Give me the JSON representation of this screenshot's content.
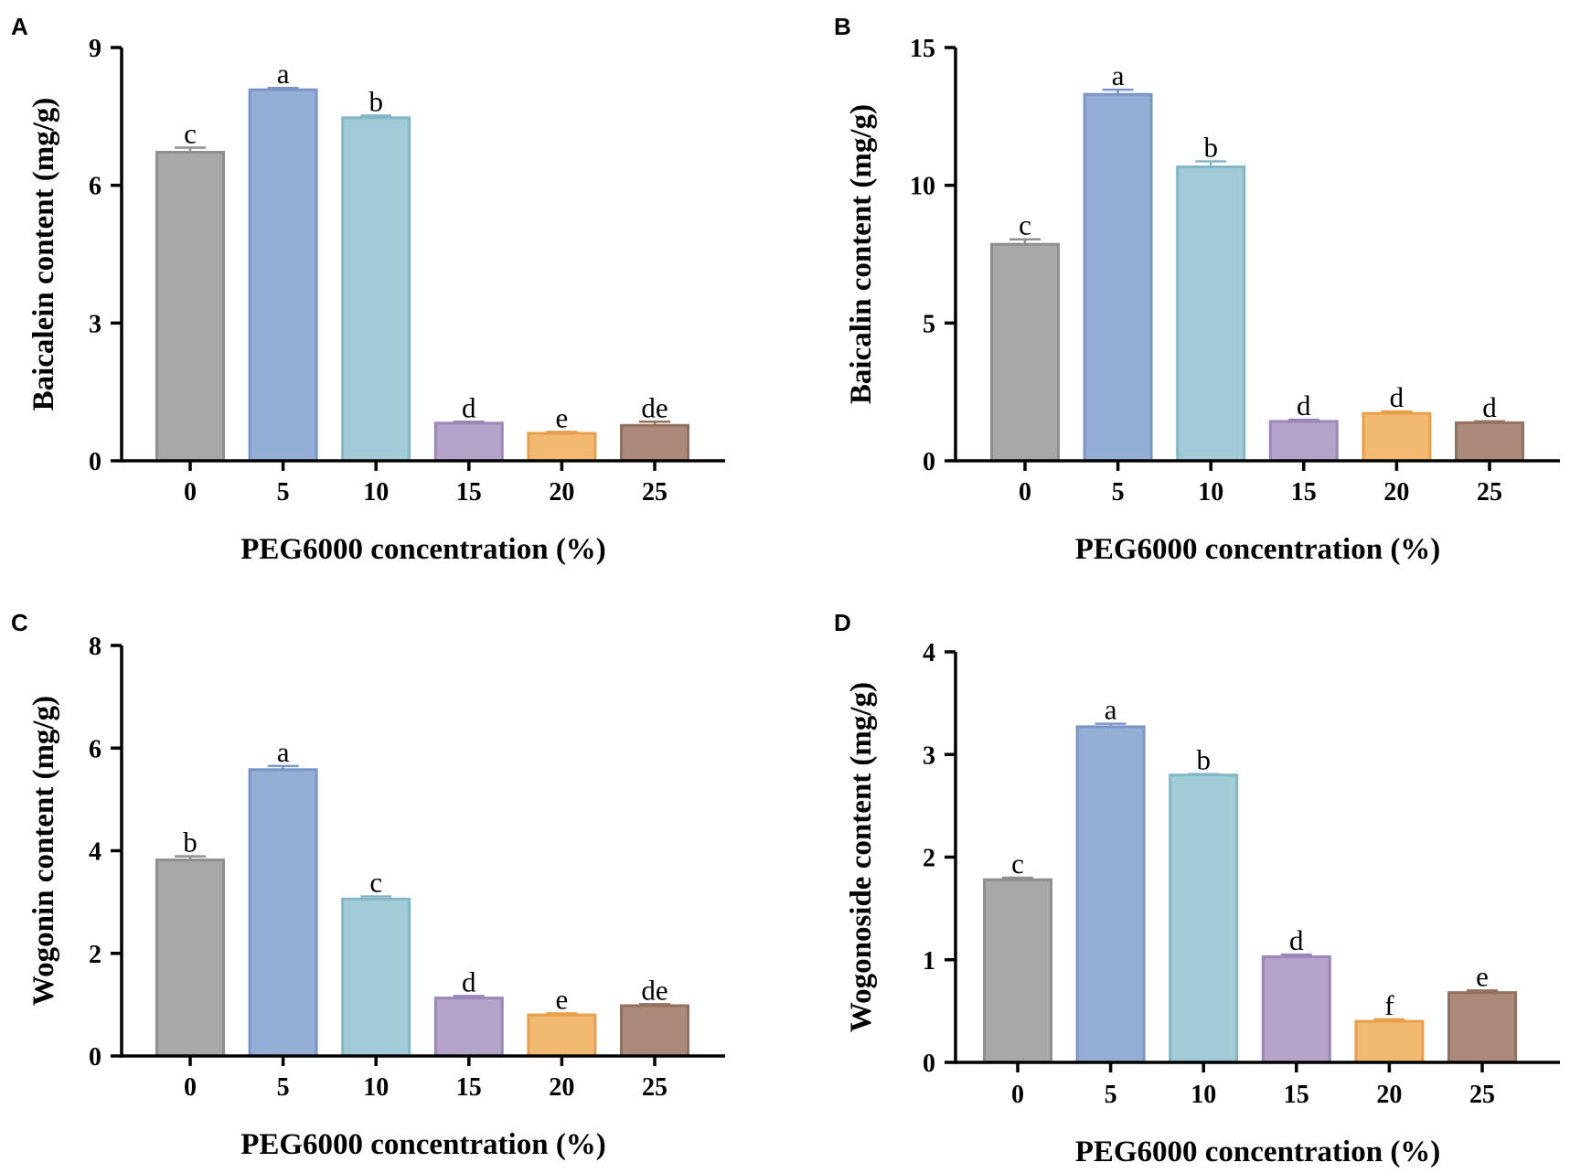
{
  "figure": {
    "colors": {
      "fill": [
        "#a8a8a8",
        "#95aed6",
        "#a1cbd7",
        "#b4a4ca",
        "#f2b971",
        "#ac8a7b"
      ],
      "stroke": [
        "#8f8f8f",
        "#7b96c6",
        "#83b7c8",
        "#9c88b8",
        "#e8a04c",
        "#94705f"
      ]
    }
  },
  "chart_data": [
    {
      "panel": "A",
      "type": "bar",
      "title": "",
      "xlabel": "PEG6000 concentration (%)",
      "ylabel": "Baicalein content (mg/g)",
      "categories": [
        "0",
        "5",
        "10",
        "15",
        "20",
        "25"
      ],
      "values": [
        6.72,
        8.08,
        7.47,
        0.82,
        0.6,
        0.77
      ],
      "errors": [
        0.1,
        0.04,
        0.05,
        0.03,
        0.03,
        0.08
      ],
      "significance": [
        "c",
        "a",
        "b",
        "d",
        "e",
        "de"
      ],
      "ylim": [
        0,
        9
      ],
      "yticks": [
        "0",
        "3",
        "6",
        "9"
      ]
    },
    {
      "panel": "B",
      "type": "bar",
      "title": "",
      "xlabel": "PEG6000 concentration (%)",
      "ylabel": "Baicalin content (mg/g)",
      "categories": [
        "0",
        "5",
        "10",
        "15",
        "20",
        "25"
      ],
      "values": [
        7.86,
        13.3,
        10.67,
        1.43,
        1.72,
        1.38
      ],
      "errors": [
        0.18,
        0.17,
        0.2,
        0.06,
        0.07,
        0.05
      ],
      "significance": [
        "c",
        "a",
        "b",
        "d",
        "d",
        "d"
      ],
      "ylim": [
        0,
        15
      ],
      "yticks": [
        "0",
        "5",
        "10",
        "15"
      ]
    },
    {
      "panel": "C",
      "type": "bar",
      "title": "",
      "xlabel": "PEG6000 concentration (%)",
      "ylabel": "Wogonin content (mg/g)",
      "categories": [
        "0",
        "5",
        "10",
        "15",
        "20",
        "25"
      ],
      "values": [
        3.82,
        5.58,
        3.06,
        1.13,
        0.8,
        0.98
      ],
      "errors": [
        0.07,
        0.07,
        0.05,
        0.04,
        0.03,
        0.03
      ],
      "significance": [
        "b",
        "a",
        "c",
        "d",
        "e",
        "de"
      ],
      "ylim": [
        0,
        8
      ],
      "yticks": [
        "0",
        "2",
        "4",
        "6",
        "8"
      ]
    },
    {
      "panel": "D",
      "type": "bar",
      "title": "",
      "xlabel": "PEG6000 concentration (%)",
      "ylabel": "Wogonoside content (mg/g)",
      "categories": [
        "0",
        "5",
        "10",
        "15",
        "20",
        "25"
      ],
      "values": [
        1.78,
        3.27,
        2.8,
        1.03,
        0.4,
        0.68
      ],
      "errors": [
        0.02,
        0.03,
        0.01,
        0.02,
        0.02,
        0.02
      ],
      "significance": [
        "c",
        "a",
        "b",
        "d",
        "f",
        "e"
      ],
      "ylim": [
        0,
        4
      ],
      "yticks": [
        "0",
        "1",
        "2",
        "3",
        "4"
      ]
    }
  ]
}
